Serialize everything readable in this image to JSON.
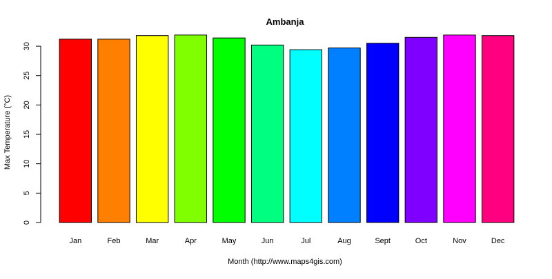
{
  "chart_data": {
    "type": "bar",
    "title": "Ambanja",
    "xlabel": "Month (http://www.maps4gis.com)",
    "ylabel": "Max Temperature (°C)",
    "categories": [
      "Jan",
      "Feb",
      "Mar",
      "Apr",
      "May",
      "Jun",
      "Jul",
      "Aug",
      "Sept",
      "Oct",
      "Nov",
      "Dec"
    ],
    "values": [
      31.2,
      31.2,
      31.8,
      31.9,
      31.4,
      30.2,
      29.4,
      29.7,
      30.5,
      31.5,
      31.9,
      31.8
    ],
    "colors": [
      "#FF0000",
      "#FF8000",
      "#FFFF00",
      "#80FF00",
      "#00FF00",
      "#00FF80",
      "#00FFFF",
      "#0080FF",
      "#0000FF",
      "#8000FF",
      "#FF00FF",
      "#FF0080"
    ],
    "yticks": [
      0,
      5,
      10,
      15,
      20,
      25,
      30
    ],
    "ylim": [
      0,
      32
    ],
    "grid": false,
    "legend": "none"
  }
}
